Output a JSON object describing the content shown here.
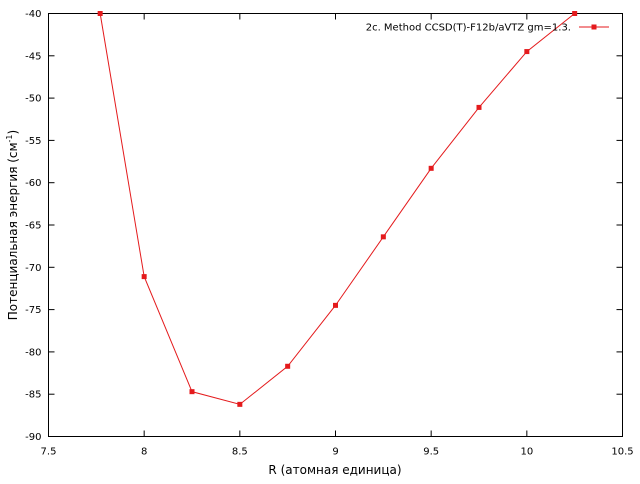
{
  "chart_data": {
    "type": "line",
    "xlabel": "R (атомная единица)",
    "ylabel_parts": [
      "Потенциальная энергия (см",
      "-1",
      ")"
    ],
    "x": [
      7.77,
      8.0,
      8.25,
      8.5,
      8.75,
      9.0,
      9.25,
      9.5,
      9.75,
      10.0,
      10.25
    ],
    "series": [
      {
        "name": "2c. Method CCSD(T)-F12b/aVTZ gm=1.3.",
        "color": "#e41a1c",
        "values": [
          -40.0,
          -71.1,
          -84.7,
          -86.2,
          -81.7,
          -74.5,
          -66.4,
          -58.3,
          -51.1,
          -44.5,
          -40.0
        ]
      }
    ],
    "xlim": [
      7.5,
      10.5
    ],
    "xticks": [
      7.5,
      8,
      8.5,
      9,
      9.5,
      10,
      10.5
    ],
    "ylim": [
      -90,
      -40
    ],
    "yticks": [
      -90,
      -85,
      -80,
      -75,
      -70,
      -65,
      -60,
      -55,
      -50,
      -45,
      -40
    ],
    "legend": "top-right"
  }
}
